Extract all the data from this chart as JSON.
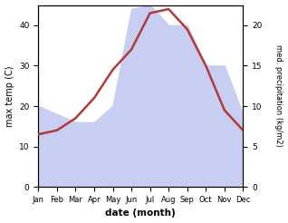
{
  "months": [
    "Jan",
    "Feb",
    "Mar",
    "Apr",
    "May",
    "Jun",
    "Jul",
    "Aug",
    "Sep",
    "Oct",
    "Nov",
    "Dec"
  ],
  "temp": [
    13,
    14,
    17,
    22,
    29,
    34,
    43,
    44,
    39,
    30,
    19,
    14
  ],
  "precip": [
    10,
    9,
    8,
    8,
    10,
    22,
    22.5,
    20,
    20,
    15,
    15,
    9
  ],
  "temp_color": "#b03a3a",
  "precip_color_fill": "#c8cef2",
  "ylabel_left": "max temp (C)",
  "ylabel_right": "med. precipitation (kg/m2)",
  "xlabel": "date (month)",
  "ylim_left": [
    0,
    45
  ],
  "ylim_right": [
    0,
    22.5
  ],
  "bg_color": "#ffffff"
}
